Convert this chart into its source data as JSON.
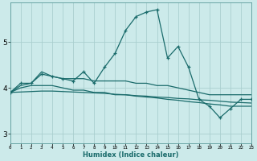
{
  "xlabel": "Humidex (Indice chaleur)",
  "bg_color": "#cceaea",
  "grid_color": "#aacfcf",
  "line_color": "#1a6b6b",
  "x_ticks": [
    0,
    1,
    2,
    3,
    4,
    5,
    6,
    7,
    8,
    9,
    10,
    11,
    12,
    13,
    14,
    15,
    16,
    17,
    18,
    19,
    20,
    21,
    22,
    23
  ],
  "xlim": [
    0,
    23
  ],
  "ylim": [
    2.8,
    5.85
  ],
  "yticks": [
    3,
    4,
    5
  ],
  "series": {
    "main": [
      3.9,
      4.1,
      4.1,
      4.3,
      4.25,
      4.2,
      4.15,
      4.35,
      4.1,
      4.45,
      4.75,
      5.25,
      5.55,
      5.65,
      5.7,
      4.65,
      4.9,
      4.45,
      3.75,
      3.6,
      3.35,
      3.55,
      3.75,
      3.75
    ],
    "upper": [
      3.9,
      4.05,
      4.1,
      4.35,
      4.25,
      4.2,
      4.2,
      4.2,
      4.15,
      4.15,
      4.15,
      4.15,
      4.1,
      4.1,
      4.05,
      4.05,
      4.0,
      3.95,
      3.9,
      3.85,
      3.85,
      3.85,
      3.85,
      3.85
    ],
    "lower": [
      3.9,
      4.0,
      4.05,
      4.05,
      4.05,
      4.0,
      3.95,
      3.95,
      3.9,
      3.9,
      3.85,
      3.85,
      3.82,
      3.8,
      3.78,
      3.75,
      3.73,
      3.7,
      3.68,
      3.65,
      3.63,
      3.6,
      3.6,
      3.6
    ],
    "trend_lower": [
      3.9,
      3.91,
      3.92,
      3.93,
      3.93,
      3.92,
      3.91,
      3.9,
      3.89,
      3.88,
      3.86,
      3.85,
      3.83,
      3.82,
      3.8,
      3.79,
      3.77,
      3.76,
      3.74,
      3.73,
      3.71,
      3.69,
      3.68,
      3.67
    ]
  }
}
